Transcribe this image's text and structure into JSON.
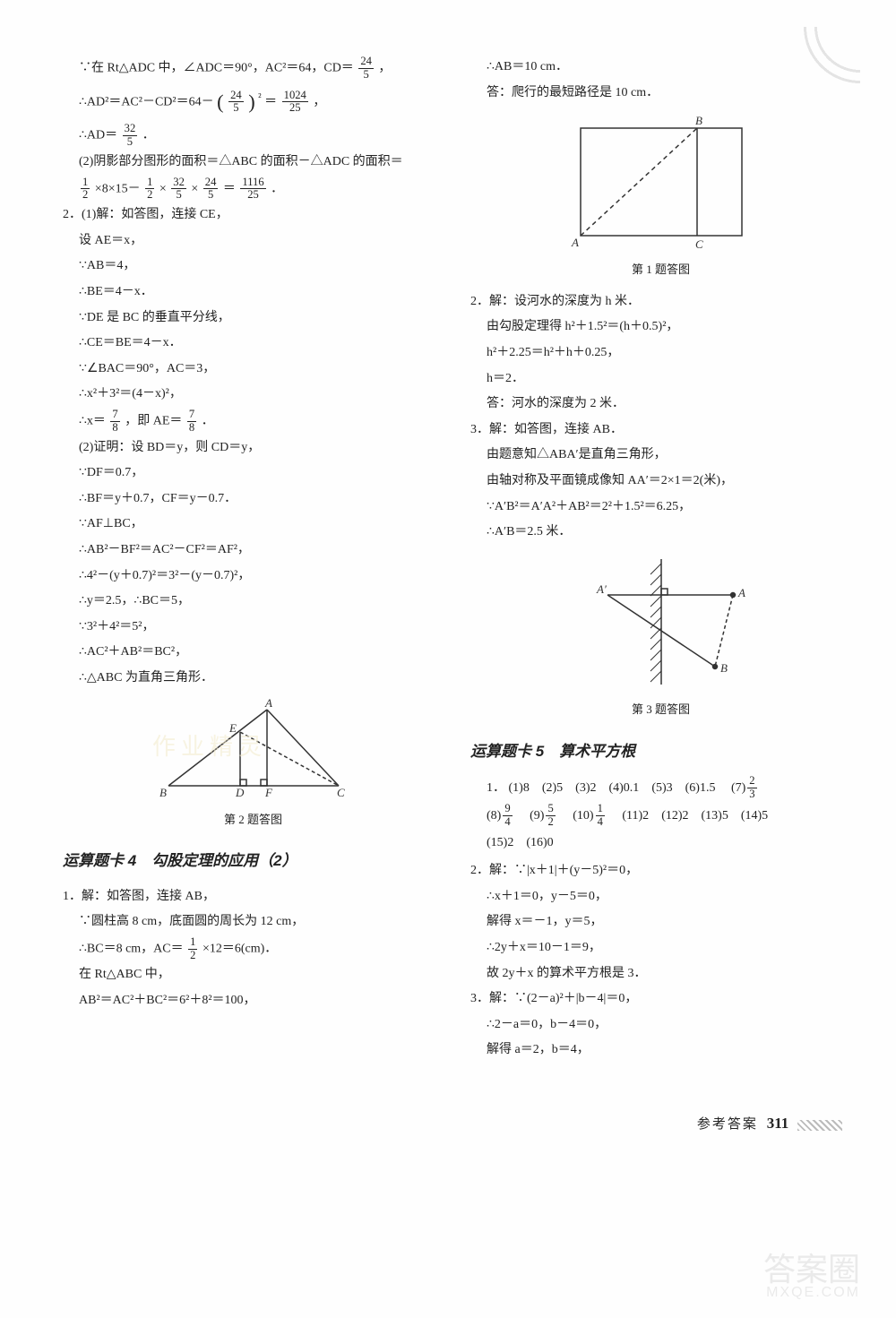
{
  "left": {
    "l1": "∵在 Rt△ADC 中，∠ADC＝90°，AC²＝64，CD＝",
    "l1_frac": {
      "num": "24",
      "den": "5"
    },
    "l1_tail": "，",
    "l2_a": "∴AD²＝AC²－CD²＝64－",
    "l2_bigL": "(",
    "l2_frac_inner": {
      "num": "24",
      "den": "5"
    },
    "l2_bigR": ")",
    "l2_sup": "²",
    "l2_eq": "＝",
    "l2_frac2": {
      "num": "1024",
      "den": "25"
    },
    "l2_tail": "，",
    "l3_a": "∴AD＝",
    "l3_frac": {
      "num": "32",
      "den": "5"
    },
    "l3_tail": "．",
    "l4": "(2)阴影部分图形的面积＝△ABC 的面积－△ADC 的面积＝",
    "l5_f1": {
      "num": "1",
      "den": "2"
    },
    "l5_a": "×8×15－",
    "l5_f2": {
      "num": "1",
      "den": "2"
    },
    "l5_b": "×",
    "l5_f3": {
      "num": "32",
      "den": "5"
    },
    "l5_c": "×",
    "l5_f4": {
      "num": "24",
      "den": "5"
    },
    "l5_d": "＝",
    "l5_f5": {
      "num": "1116",
      "den": "25"
    },
    "l5_tail": "．",
    "q2_head": "2．(1)解：如答图，连接 CE，",
    "q2_1": "设 AE＝x，",
    "q2_2": "∵AB＝4，",
    "q2_3": "∴BE＝4－x．",
    "q2_4": "∵DE 是 BC 的垂直平分线，",
    "q2_5": "∴CE＝BE＝4－x．",
    "q2_6": "∵∠BAC＝90°，AC＝3，",
    "q2_7": "∴x²＋3²＝(4－x)²，",
    "q2_8a": "∴x＝",
    "q2_8f1": {
      "num": "7",
      "den": "8"
    },
    "q2_8b": "，即 AE＝",
    "q2_8f2": {
      "num": "7",
      "den": "8"
    },
    "q2_8c": "．",
    "q2_p2_head": "(2)证明：设 BD＝y，则 CD＝y，",
    "q2_p2_1": "∵DF＝0.7，",
    "q2_p2_2": "∴BF＝y＋0.7，CF＝y－0.7．",
    "q2_p2_3": "∵AF⊥BC，",
    "q2_p2_4": "∴AB²－BF²＝AC²－CF²＝AF²，",
    "q2_p2_5": "∴4²－(y＋0.7)²＝3²－(y－0.7)²，",
    "q2_p2_6": "∴y＝2.5，∴BC＝5，",
    "q2_p2_7": "∵3²＋4²＝5²，",
    "q2_p2_8": "∴AC²＋AB²＝BC²，",
    "q2_p2_9": "∴△ABC 为直角三角形．",
    "fig2_caption": "第 2 题答图",
    "section4_title": "运算题卡 4　勾股定理的应用（2）",
    "s4_q1_head": "1．解：如答图，连接 AB，",
    "s4_q1_1": "∵圆柱高 8 cm，底面圆的周长为 12 cm，",
    "s4_q1_2a": "∴BC＝8 cm，AC＝",
    "s4_q1_2f": {
      "num": "1",
      "den": "2"
    },
    "s4_q1_2b": "×12＝6(cm)．",
    "s4_q1_3": "在 Rt△ABC 中，",
    "s4_q1_4": "AB²＝AC²＋BC²＝6²＋8²＝100，",
    "wm_faint_left": "作业精灵"
  },
  "right": {
    "r1": "∴AB＝10 cm．",
    "r2": "答：爬行的最短路径是 10 cm．",
    "fig1_caption": "第 1 题答图",
    "q2_head": "2．解：设河水的深度为 h 米．",
    "q2_1": "由勾股定理得 h²＋1.5²＝(h＋0.5)²，",
    "q2_2": "h²＋2.25＝h²＋h＋0.25，",
    "q2_3": "h＝2．",
    "q2_4": "答：河水的深度为 2 米．",
    "q3_head": "3．解：如答图，连接 AB．",
    "q3_1": "由题意知△ABA′是直角三角形，",
    "q3_2": "由轴对称及平面镜成像知 AA′＝2×1＝2(米)，",
    "q3_3": "∵A′B²＝A′A²＋AB²＝2²＋1.5²＝6.25，",
    "q3_4": "∴A′B＝2.5 米．",
    "fig3_caption": "第 3 题答图",
    "section5_title": "运算题卡 5　算术平方根",
    "s5_q1_items": [
      "(1)8",
      "(2)5",
      "(3)2",
      "(4)0.1",
      "(5)3",
      "(6)1.5"
    ],
    "s5_q1_item7_a": "(7)",
    "s5_q1_item7_f": {
      "num": "2",
      "den": "3"
    },
    "s5_q1_item8_a": "(8)",
    "s5_q1_item8_f": {
      "num": "9",
      "den": "4"
    },
    "s5_q1_item9_a": "(9)",
    "s5_q1_item9_f": {
      "num": "5",
      "den": "2"
    },
    "s5_q1_item10_a": "(10)",
    "s5_q1_item10_f": {
      "num": "1",
      "den": "4"
    },
    "s5_q1_items2": [
      "(11)2",
      "(12)2",
      "(13)5",
      "(14)5",
      "(15)2",
      "(16)0"
    ],
    "s5_q2_head": "2．解：∵|x＋1|＋(y－5)²＝0，",
    "s5_q2_1": "∴x＋1＝0，y－5＝0，",
    "s5_q2_2": "解得 x＝－1，y＝5，",
    "s5_q2_3": "∴2y＋x＝10－1＝9，",
    "s5_q2_4": "故 2y＋x 的算术平方根是 3．",
    "s5_q3_head": "3．解：∵(2－a)²＋|b－4|＝0，",
    "s5_q3_1": "∴2－a＝0，b－4＝0，",
    "s5_q3_2": "解得 a＝2，b＝4，"
  },
  "footer": {
    "label": "参考答案",
    "page": "311"
  },
  "watermark": {
    "main": "答案圈",
    "sub": "MXQE.COM"
  },
  "figures": {
    "fig2": {
      "stroke": "#333",
      "labels": {
        "A": "A",
        "B": "B",
        "C": "C",
        "D": "D",
        "E": "E",
        "F": "F"
      }
    },
    "fig1": {
      "stroke": "#333",
      "labels": {
        "A": "A",
        "B": "B",
        "C": "C"
      }
    },
    "fig3": {
      "stroke": "#333",
      "labels": {
        "A": "A",
        "Ap": "A′",
        "B": "B"
      }
    }
  }
}
